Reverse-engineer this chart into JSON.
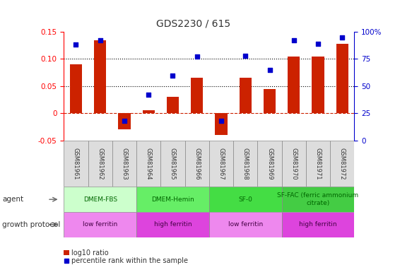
{
  "title": "GDS2230 / 615",
  "samples": [
    "GSM81961",
    "GSM81962",
    "GSM81963",
    "GSM81964",
    "GSM81965",
    "GSM81966",
    "GSM81967",
    "GSM81968",
    "GSM81969",
    "GSM81970",
    "GSM81971",
    "GSM81972"
  ],
  "log10_ratio": [
    0.09,
    0.135,
    -0.03,
    0.005,
    0.03,
    0.065,
    -0.04,
    0.065,
    0.045,
    0.105,
    0.105,
    0.128
  ],
  "percentile_rank": [
    88,
    92,
    18,
    42,
    60,
    77,
    18,
    78,
    65,
    92,
    89,
    95
  ],
  "ylim_left": [
    -0.05,
    0.15
  ],
  "ylim_right": [
    0,
    100
  ],
  "yticks_left": [
    -0.05,
    0.0,
    0.05,
    0.1,
    0.15
  ],
  "yticks_right": [
    0,
    25,
    50,
    75,
    100
  ],
  "hlines": [
    0.05,
    0.1
  ],
  "bar_color": "#cc2200",
  "dot_color": "#0000cc",
  "zero_line_color": "#cc2200",
  "agent_groups": [
    {
      "label": "DMEM-FBS",
      "start": 0,
      "end": 3,
      "color": "#ccffcc"
    },
    {
      "label": "DMEM-Hemin",
      "start": 3,
      "end": 6,
      "color": "#66ee66"
    },
    {
      "label": "SF-0",
      "start": 6,
      "end": 9,
      "color": "#44dd44"
    },
    {
      "label": "SF-FAC (ferric ammonium\ncitrate)",
      "start": 9,
      "end": 12,
      "color": "#44cc44"
    }
  ],
  "protocol_groups": [
    {
      "label": "low ferritin",
      "start": 0,
      "end": 3,
      "color": "#ee88ee"
    },
    {
      "label": "high ferritin",
      "start": 3,
      "end": 6,
      "color": "#dd44dd"
    },
    {
      "label": "low ferritin",
      "start": 6,
      "end": 9,
      "color": "#ee88ee"
    },
    {
      "label": "high ferritin",
      "start": 9,
      "end": 12,
      "color": "#dd44dd"
    }
  ],
  "agent_label": "agent",
  "protocol_label": "growth protocol",
  "legend_bar_label": "log10 ratio",
  "legend_dot_label": "percentile rank within the sample",
  "sample_box_color": "#dddddd"
}
